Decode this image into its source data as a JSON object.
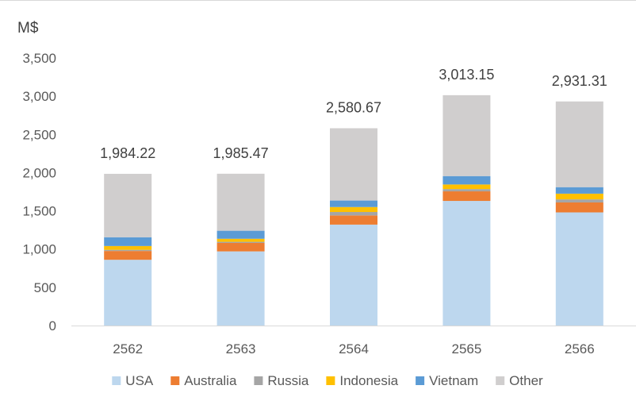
{
  "chart_data": {
    "type": "bar",
    "stacked": true,
    "categories": [
      "2562",
      "2563",
      "2564",
      "2565",
      "2566"
    ],
    "ylabel": "M$",
    "ylim": [
      0,
      3500
    ],
    "yticks": [
      0,
      500,
      1000,
      1500,
      2000,
      2500,
      3000,
      3500
    ],
    "ytick_labels": [
      "0",
      "500",
      "1,000",
      "1,500",
      "2,000",
      "2,500",
      "3,000",
      "3,500"
    ],
    "grid": false,
    "legend_position": "bottom",
    "totals": [
      1984.22,
      1985.47,
      2580.67,
      3013.15,
      2931.31
    ],
    "total_labels": [
      "1,984.22",
      "1,985.47",
      "2,580.67",
      "3,013.15",
      "2,931.31"
    ],
    "series": [
      {
        "name": "USA",
        "color": "#bdd7ee",
        "values": [
          860,
          970,
          1320,
          1630,
          1480
        ]
      },
      {
        "name": "Australia",
        "color": "#ed7d31",
        "values": [
          115,
          110,
          120,
          125,
          130
        ]
      },
      {
        "name": "Russia",
        "color": "#a5a5a5",
        "values": [
          15,
          15,
          45,
          30,
          40
        ]
      },
      {
        "name": "Indonesia",
        "color": "#ffc000",
        "values": [
          50,
          40,
          65,
          60,
          75
        ]
      },
      {
        "name": "Vietnam",
        "color": "#5b9bd5",
        "values": [
          115,
          105,
          85,
          110,
          85
        ]
      },
      {
        "name": "Other",
        "color": "#d0cece",
        "values": [
          829.22,
          745.47,
          945.67,
          1058.15,
          1121.31
        ]
      }
    ]
  }
}
